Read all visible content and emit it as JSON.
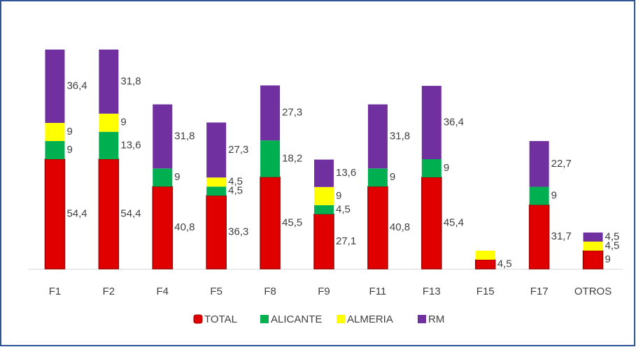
{
  "chart_data": {
    "type": "stacked_bar",
    "categories": [
      "F1",
      "F2",
      "F4",
      "F5",
      "F8",
      "F9",
      "F11",
      "F13",
      "F15",
      "F17",
      "OTROS"
    ],
    "series": [
      {
        "name": "TOTAL",
        "color": "#e00000",
        "values": [
          54.4,
          54.4,
          40.8,
          36.3,
          45.5,
          27.1,
          40.8,
          45.4,
          4.5,
          31.7,
          9
        ],
        "value_labels": [
          "54,4",
          "54,4",
          "40,8",
          "36,3",
          "45,5",
          "27,1",
          "40,8",
          "45,4",
          "4,5",
          "31,7",
          "9"
        ]
      },
      {
        "name": "ALICANTE",
        "color": "#00b050",
        "values": [
          9,
          13.6,
          9,
          4.5,
          18.2,
          4.5,
          9,
          9,
          null,
          9,
          null
        ],
        "value_labels": [
          "9",
          "13,6",
          "9",
          "4,5",
          "18,2",
          "4,5",
          "9",
          "9",
          null,
          "9",
          null
        ]
      },
      {
        "name": "ALMERIA",
        "color": "#ffff00",
        "values": [
          9,
          9,
          null,
          4.5,
          null,
          9,
          null,
          null,
          4.5,
          null,
          4.5
        ],
        "value_labels": [
          "9",
          "9",
          null,
          "4,5",
          null,
          "9",
          null,
          null,
          null,
          null,
          "4,5"
        ]
      },
      {
        "name": "RM",
        "color": "#7030a0",
        "values": [
          36.4,
          31.8,
          31.8,
          27.3,
          27.3,
          13.6,
          31.8,
          36.4,
          null,
          22.7,
          4.5
        ],
        "value_labels": [
          "36,4",
          "31,8",
          "31,8",
          "27,3",
          "27,3",
          "13,6",
          "31,8",
          "36,4",
          null,
          "22,7",
          "4,5"
        ]
      }
    ],
    "legend": "bottom"
  }
}
